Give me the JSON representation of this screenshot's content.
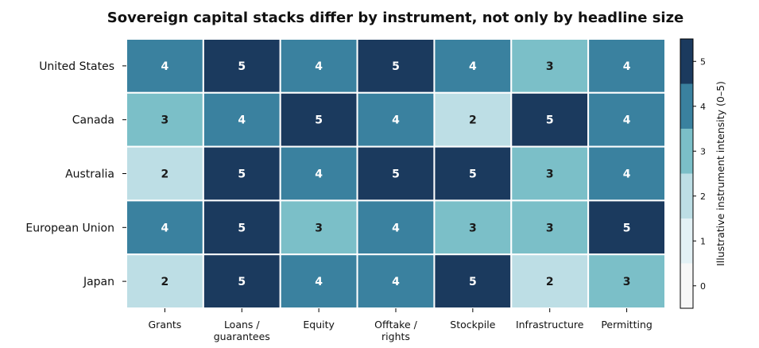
{
  "chart_data": {
    "type": "heatmap",
    "title": "Sovereign capital stacks differ by instrument, not only by headline size",
    "xlabel": "",
    "ylabel": "",
    "x_categories": [
      "Grants",
      "Loans / guarantees",
      "Equity",
      "Offtake / rights",
      "Stockpile",
      "Infrastructure",
      "Permitting"
    ],
    "x_tick_labels": [
      [
        "Grants"
      ],
      [
        "Loans /",
        "guarantees"
      ],
      [
        "Equity"
      ],
      [
        "Offtake /",
        "rights"
      ],
      [
        "Stockpile"
      ],
      [
        "Infrastructure"
      ],
      [
        "Permitting"
      ]
    ],
    "y_categories": [
      "United States",
      "Canada",
      "Australia",
      "European Union",
      "Japan"
    ],
    "values": [
      [
        4,
        5,
        4,
        5,
        4,
        3,
        4
      ],
      [
        3,
        4,
        5,
        4,
        2,
        5,
        4
      ],
      [
        2,
        5,
        4,
        5,
        5,
        3,
        4
      ],
      [
        4,
        5,
        3,
        4,
        3,
        3,
        5
      ],
      [
        2,
        5,
        4,
        4,
        5,
        2,
        3
      ]
    ],
    "colorbar": {
      "label": "Illustrative instrument intensity (0–5)",
      "range": [
        -0.5,
        5.5
      ],
      "ticks": [
        0,
        1,
        2,
        3,
        4,
        5
      ],
      "levels": [
        0,
        1,
        2,
        3,
        4,
        5
      ],
      "colors": [
        "#f7f7f7",
        "#e3f1f5",
        "#bddee5",
        "#7bbfc8",
        "#3a819f",
        "#1b3a5e"
      ]
    },
    "value_label_colors": {
      "dark_text": "#1a1a1a",
      "light_text": "#ffffff"
    },
    "grid": false
  }
}
